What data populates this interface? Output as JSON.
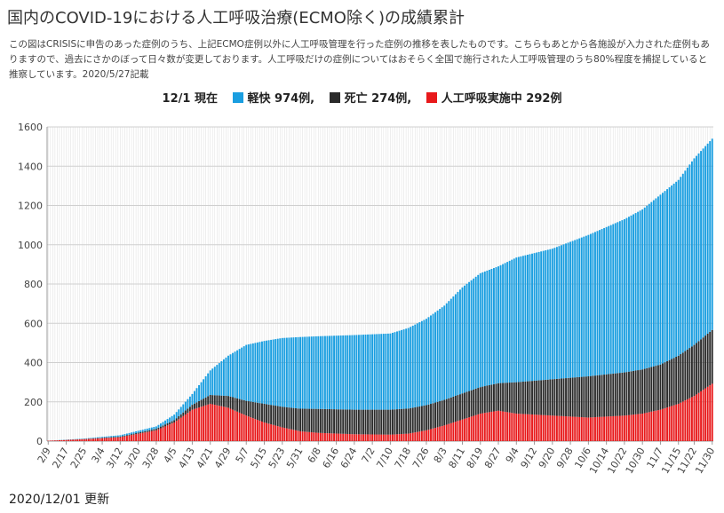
{
  "page": {
    "title": "国内のCOVID-19における人工呼吸治療(ECMO除く)の成績累計",
    "description": "この図はCRISISに申告のあった症例のうち、上記ECMO症例以外に人工呼吸管理を行った症例の推移を表したものです。こちらもあとから各施設が入力された症例もありますので、過去にさかのぼって日々数が変更しております。人工呼吸だけの症例についてはおそらく全国で施行された人工呼吸管理のうち80%程度を捕捉していると推察しています。2020/5/27記載",
    "footer": "2020/12/01 更新"
  },
  "legend": {
    "as_of": "12/1 現在",
    "items": [
      {
        "label": "軽快 974例,",
        "color": "#1a9ee0"
      },
      {
        "label": "死亡 274例,",
        "color": "#2b2b2b"
      },
      {
        "label": "人工呼吸実施中 292例",
        "color": "#e8191b"
      }
    ]
  },
  "chart_data": {
    "type": "bar",
    "stacked": true,
    "x_start": "2020-02-09",
    "x_end": "2020-11-30",
    "tick_labels": [
      "2/9",
      "2/17",
      "2/25",
      "3/4",
      "3/12",
      "3/20",
      "3/28",
      "4/5",
      "4/13",
      "4/21",
      "4/29",
      "5/7",
      "5/15",
      "5/23",
      "5/31",
      "6/8",
      "6/16",
      "6/24",
      "7/2",
      "7/10",
      "7/18",
      "7/26",
      "8/3",
      "8/11",
      "8/19",
      "8/27",
      "9/4",
      "9/12",
      "9/20",
      "9/28",
      "10/6",
      "10/14",
      "10/22",
      "10/30",
      "11/7",
      "11/15",
      "11/22",
      "11/30"
    ],
    "y_ticks": [
      0,
      200,
      400,
      600,
      800,
      1000,
      1200,
      1400,
      1600
    ],
    "ylim": [
      0,
      1600
    ],
    "grid": true,
    "series": [
      {
        "name": "人工呼吸実施中",
        "color": "#e8191b",
        "points": [
          [
            "2/9",
            2
          ],
          [
            "2/25",
            10
          ],
          [
            "3/12",
            20
          ],
          [
            "3/28",
            55
          ],
          [
            "4/5",
            95
          ],
          [
            "4/13",
            160
          ],
          [
            "4/21",
            190
          ],
          [
            "4/29",
            170
          ],
          [
            "5/7",
            130
          ],
          [
            "5/15",
            95
          ],
          [
            "5/23",
            70
          ],
          [
            "5/31",
            50
          ],
          [
            "6/8",
            42
          ],
          [
            "6/24",
            35
          ],
          [
            "7/10",
            33
          ],
          [
            "7/18",
            38
          ],
          [
            "7/26",
            55
          ],
          [
            "8/3",
            80
          ],
          [
            "8/11",
            110
          ],
          [
            "8/19",
            140
          ],
          [
            "8/27",
            155
          ],
          [
            "9/4",
            140
          ],
          [
            "9/20",
            130
          ],
          [
            "10/6",
            120
          ],
          [
            "10/22",
            130
          ],
          [
            "10/30",
            140
          ],
          [
            "11/7",
            160
          ],
          [
            "11/15",
            190
          ],
          [
            "11/22",
            230
          ],
          [
            "11/30",
            292
          ]
        ]
      },
      {
        "name": "死亡",
        "color": "#2b2b2b",
        "points": [
          [
            "2/9",
            0
          ],
          [
            "2/25",
            1
          ],
          [
            "3/12",
            3
          ],
          [
            "3/28",
            8
          ],
          [
            "4/5",
            12
          ],
          [
            "4/13",
            25
          ],
          [
            "4/21",
            45
          ],
          [
            "4/29",
            60
          ],
          [
            "5/7",
            75
          ],
          [
            "5/15",
            95
          ],
          [
            "5/23",
            105
          ],
          [
            "5/31",
            115
          ],
          [
            "6/8",
            122
          ],
          [
            "6/24",
            125
          ],
          [
            "7/10",
            127
          ],
          [
            "7/18",
            128
          ],
          [
            "7/26",
            128
          ],
          [
            "8/3",
            130
          ],
          [
            "8/11",
            133
          ],
          [
            "8/19",
            135
          ],
          [
            "8/27",
            140
          ],
          [
            "9/4",
            160
          ],
          [
            "9/20",
            185
          ],
          [
            "10/6",
            210
          ],
          [
            "10/22",
            220
          ],
          [
            "10/30",
            225
          ],
          [
            "11/7",
            230
          ],
          [
            "11/15",
            245
          ],
          [
            "11/22",
            260
          ],
          [
            "11/30",
            274
          ]
        ]
      },
      {
        "name": "軽快",
        "color": "#1a9ee0",
        "points": [
          [
            "2/9",
            0
          ],
          [
            "2/25",
            2
          ],
          [
            "3/12",
            7
          ],
          [
            "3/28",
            12
          ],
          [
            "4/5",
            28
          ],
          [
            "4/13",
            55
          ],
          [
            "4/21",
            125
          ],
          [
            "4/29",
            205
          ],
          [
            "5/7",
            285
          ],
          [
            "5/15",
            320
          ],
          [
            "5/23",
            350
          ],
          [
            "5/31",
            365
          ],
          [
            "6/8",
            370
          ],
          [
            "6/24",
            380
          ],
          [
            "7/10",
            388
          ],
          [
            "7/18",
            410
          ],
          [
            "7/26",
            440
          ],
          [
            "8/3",
            480
          ],
          [
            "8/11",
            540
          ],
          [
            "8/19",
            580
          ],
          [
            "8/27",
            595
          ],
          [
            "9/4",
            635
          ],
          [
            "9/20",
            665
          ],
          [
            "10/6",
            720
          ],
          [
            "10/22",
            780
          ],
          [
            "10/30",
            815
          ],
          [
            "11/7",
            865
          ],
          [
            "11/15",
            895
          ],
          [
            "11/22",
            950
          ],
          [
            "11/30",
            974
          ]
        ]
      }
    ]
  }
}
